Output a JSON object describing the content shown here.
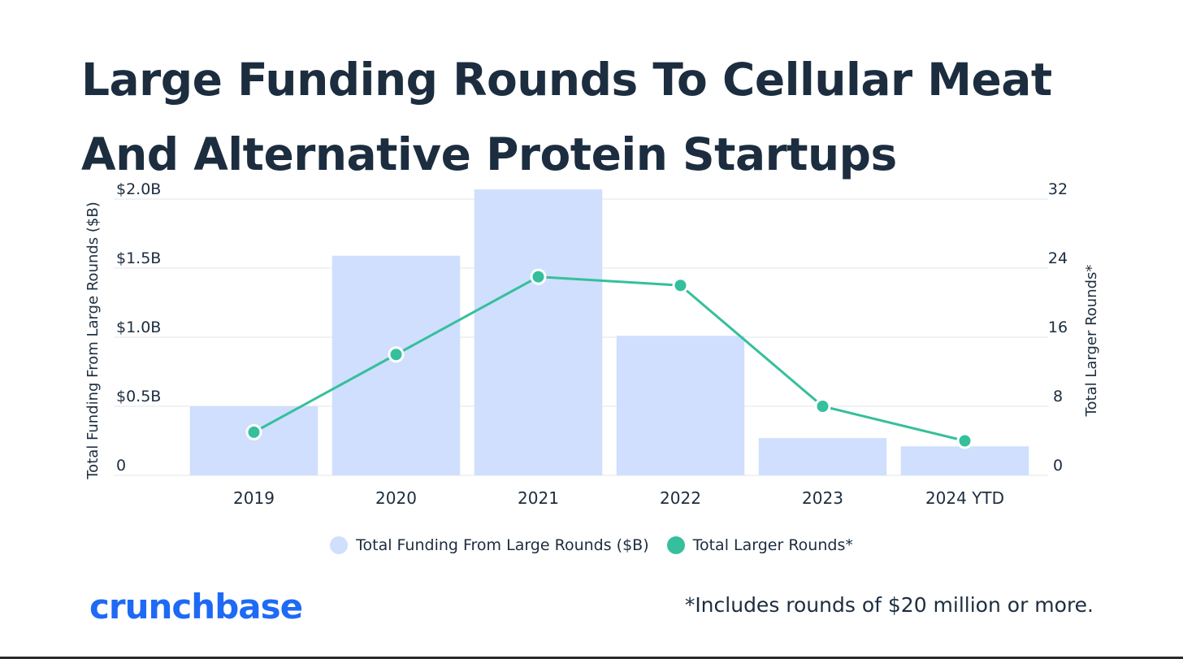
{
  "chart_data": {
    "type": "bar",
    "title_lines": [
      "Large Funding Rounds To Cellular Meat",
      "And Alternative Protein Startups"
    ],
    "categories": [
      "2019",
      "2020",
      "2021",
      "2022",
      "2023",
      "2024 YTD"
    ],
    "series": [
      {
        "name": "Total Funding From Large Rounds ($B)",
        "type": "bar",
        "axis": "left",
        "color": "#cfdffd",
        "values": [
          0.5,
          1.59,
          2.07,
          1.01,
          0.27,
          0.21
        ]
      },
      {
        "name": "Total Larger Rounds*",
        "type": "line",
        "axis": "right",
        "color": "#36bf9c",
        "values": [
          5,
          14,
          23,
          22,
          8,
          4
        ]
      }
    ],
    "ylabel": "Total Funding From Large Rounds ($B)",
    "ylabel_right": "Total Larger Rounds*",
    "ylim": [
      0,
      2.0
    ],
    "ylim_right": [
      0,
      32
    ],
    "yticks": [
      0,
      0.5,
      1.0,
      1.5,
      2.0
    ],
    "ytick_labels": [
      "0",
      "$0.5B",
      "$1.0B",
      "$1.5B",
      "$2.0B"
    ],
    "yticks_right": [
      0,
      8,
      16,
      24,
      32
    ],
    "ytick_labels_right": [
      "0",
      "8",
      "16",
      "24",
      "32"
    ],
    "grid": true,
    "legend": "bottom-center"
  },
  "brand": "crunchbase",
  "footnote": "*Includes rounds of $20 million or more.",
  "colors": {
    "text": "#1c2d3f",
    "grid": "#e3e6ea",
    "brand": "#1e6af5"
  }
}
